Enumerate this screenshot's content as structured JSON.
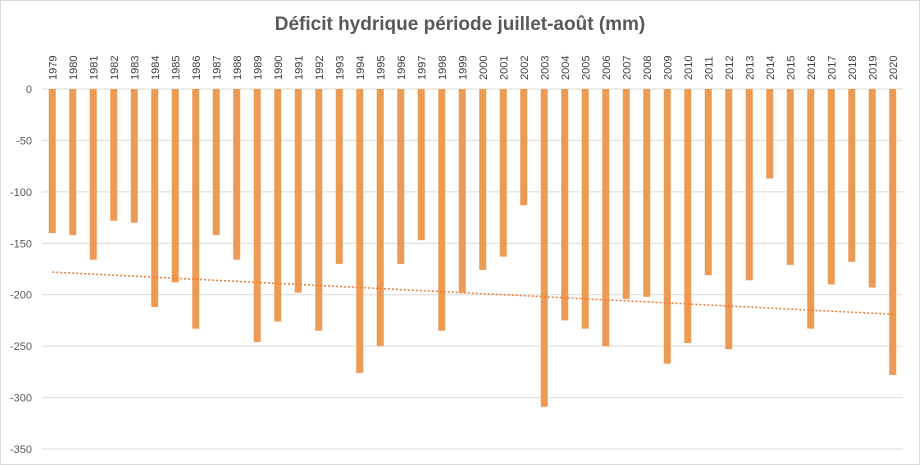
{
  "chart_data": {
    "type": "bar",
    "title": "Déficit hydrique période juillet-août (mm)",
    "xlabel": "",
    "ylabel": "",
    "ylim": [
      -350,
      0
    ],
    "yticks": [
      0,
      -50,
      -100,
      -150,
      -200,
      -250,
      -300,
      -350
    ],
    "x_axis_position": "top",
    "grid": true,
    "legend": "none",
    "trendline": {
      "type": "linear",
      "style": "dotted",
      "start": -178,
      "end": -219
    },
    "colors": {
      "bar": "#ED9A55",
      "trend": "#ED7D31",
      "grid": "#D9D9D9",
      "text": "#595959"
    },
    "categories": [
      "1979",
      "1980",
      "1981",
      "1982",
      "1983",
      "1984",
      "1985",
      "1986",
      "1987",
      "1988",
      "1989",
      "1990",
      "1991",
      "1992",
      "1993",
      "1994",
      "1995",
      "1996",
      "1997",
      "1998",
      "1999",
      "2000",
      "2001",
      "2002",
      "2003",
      "2004",
      "2005",
      "2006",
      "2007",
      "2008",
      "2009",
      "2010",
      "2011",
      "2012",
      "2013",
      "2014",
      "2015",
      "2016",
      "2017",
      "2018",
      "2019",
      "2020"
    ],
    "values": [
      -140,
      -142,
      -166,
      -128,
      -130,
      -212,
      -188,
      -233,
      -142,
      -166,
      -246,
      -226,
      -198,
      -235,
      -170,
      -276,
      -250,
      -170,
      -147,
      -235,
      -198,
      -176,
      -163,
      -113,
      -309,
      -225,
      -233,
      -250,
      -204,
      -202,
      -267,
      -247,
      -181,
      -253,
      -186,
      -87,
      -171,
      -233,
      -190,
      -168,
      -193,
      -278
    ]
  }
}
